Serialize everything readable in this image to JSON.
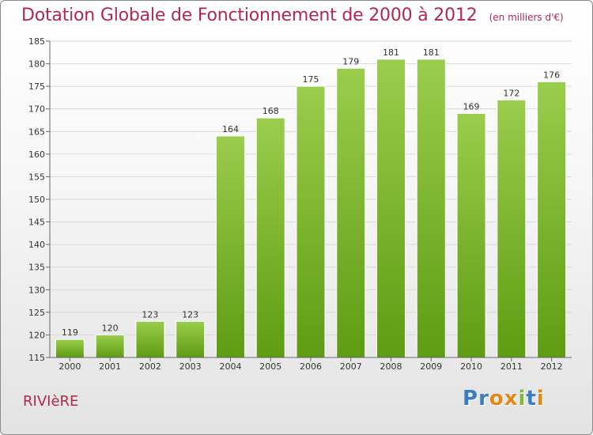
{
  "title": "Dotation Globale de Fonctionnement de 2000 à 2012",
  "unit": "(en milliers d'€)",
  "commune": "RIVIèRE",
  "logo": "Proxiti",
  "colors": {
    "bar_top": "#9acd4c",
    "bar_bottom": "#5e9c13",
    "title": "#b0284f",
    "logo_letters": [
      "#3a7ec0",
      "#3a7ec0",
      "#e0891a",
      "#e0891a",
      "#7fb83a",
      "#3a7ec0",
      "#e0891a"
    ]
  },
  "chart_data": {
    "type": "bar",
    "categories": [
      "2000",
      "2001",
      "2002",
      "2003",
      "2004",
      "2005",
      "2006",
      "2007",
      "2008",
      "2009",
      "2010",
      "2011",
      "2012"
    ],
    "values": [
      119,
      120,
      123,
      123,
      164,
      168,
      175,
      179,
      181,
      181,
      169,
      172,
      176
    ],
    "ylim": [
      115,
      185
    ],
    "yticks": [
      115,
      120,
      125,
      130,
      135,
      140,
      145,
      150,
      155,
      160,
      165,
      170,
      175,
      180,
      185
    ],
    "grid": true,
    "data_labels": true
  }
}
